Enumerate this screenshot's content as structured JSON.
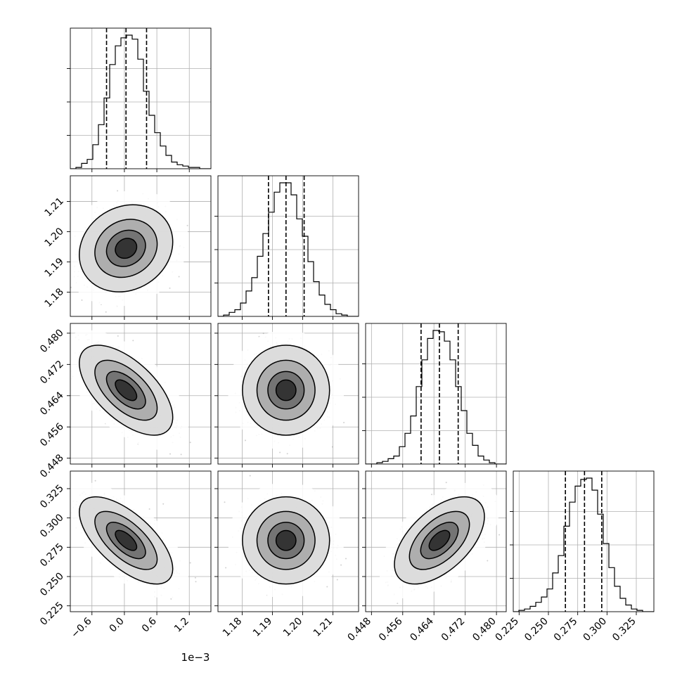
{
  "chart_data": {
    "type": "corner",
    "parameters": [
      {
        "range": [
          -1.0,
          1.6
        ],
        "ticks": [
          -0.6,
          0.0,
          0.6,
          1.2
        ],
        "tick_labels": [
          "−0.6",
          "0.0",
          "0.6",
          "1.2"
        ],
        "offset_text": "1e−3",
        "quantiles": [
          -0.33,
          0.03,
          0.41
        ],
        "peak": 0.03,
        "sigma": 0.36
      },
      {
        "range": [
          1.172,
          1.2185
        ],
        "ticks": [
          1.18,
          1.19,
          1.2,
          1.21
        ],
        "tick_labels": [
          "1.18",
          "1.19",
          "1.20",
          "1.21"
        ],
        "quantiles": [
          1.1887,
          1.1945,
          1.2005
        ],
        "peak": 1.1945,
        "sigma": 0.006
      },
      {
        "range": [
          0.4465,
          0.4825
        ],
        "ticks": [
          0.448,
          0.456,
          0.464,
          0.472,
          0.48
        ],
        "tick_labels": [
          "0.448",
          "0.456",
          "0.464",
          "0.472",
          "0.480"
        ],
        "quantiles": [
          0.4607,
          0.4654,
          0.4702
        ],
        "peak": 0.4654,
        "sigma": 0.0048
      },
      {
        "range": [
          0.22,
          0.34
        ],
        "ticks": [
          0.225,
          0.25,
          0.275,
          0.3,
          0.325
        ],
        "tick_labels": [
          "0.225",
          "0.250",
          "0.275",
          "0.300",
          "0.325"
        ],
        "quantiles": [
          0.2645,
          0.2808,
          0.2955
        ],
        "peak": 0.2808,
        "sigma": 0.0155
      }
    ],
    "correlations": {
      "1-0": 0.15,
      "2-0": -0.6,
      "2-1": 0.0,
      "3-0": -0.65,
      "3-1": 0.0,
      "3-2": 0.55
    },
    "histograms": [
      [
        0.0,
        0.01,
        0.04,
        0.07,
        0.18,
        0.33,
        0.53,
        0.78,
        0.92,
        0.98,
        1.0,
        0.97,
        0.82,
        0.58,
        0.4,
        0.27,
        0.17,
        0.1,
        0.05,
        0.03,
        0.02,
        0.01,
        0.01,
        0.0,
        0.0
      ],
      [
        0.0,
        0.01,
        0.03,
        0.05,
        0.1,
        0.19,
        0.29,
        0.45,
        0.62,
        0.78,
        0.93,
        1.0,
        1.0,
        0.91,
        0.73,
        0.6,
        0.41,
        0.26,
        0.16,
        0.09,
        0.05,
        0.02,
        0.01,
        0.0,
        0.0
      ],
      [
        0.0,
        0.0,
        0.01,
        0.02,
        0.04,
        0.06,
        0.13,
        0.23,
        0.36,
        0.58,
        0.78,
        0.94,
        1.0,
        0.99,
        0.92,
        0.78,
        0.58,
        0.4,
        0.23,
        0.14,
        0.06,
        0.03,
        0.01,
        0.0,
        0.0
      ],
      [
        0.0,
        0.01,
        0.02,
        0.04,
        0.07,
        0.11,
        0.17,
        0.29,
        0.42,
        0.64,
        0.82,
        0.94,
        0.99,
        1.0,
        0.91,
        0.73,
        0.51,
        0.33,
        0.19,
        0.1,
        0.05,
        0.02,
        0.01,
        0.0,
        0.0
      ]
    ],
    "n_scatter": 1500
  }
}
